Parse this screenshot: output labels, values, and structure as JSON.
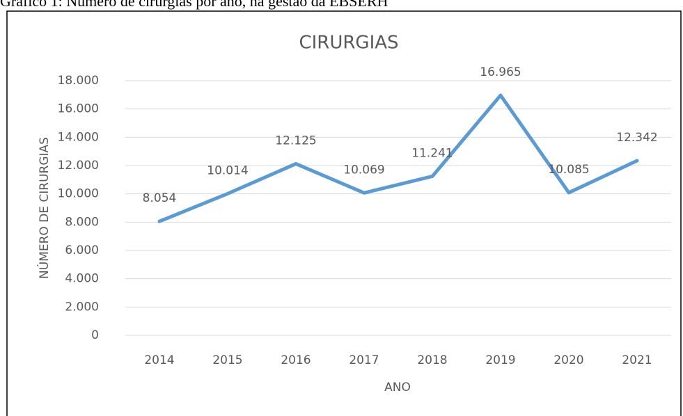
{
  "caption": "Gráfico 1: Número de cirurgias por ano, na gestão da EBSERH",
  "chart_data": {
    "type": "line",
    "title": "CIRURGIAS",
    "x_label": "ANO",
    "y_label": "NÚMERO DE CIRURGIAS",
    "categories": [
      "2014",
      "2015",
      "2016",
      "2017",
      "2018",
      "2019",
      "2020",
      "2021"
    ],
    "series": [
      {
        "name": "CIRURGIAS",
        "color": "#5b9bd5",
        "values": [
          8054,
          10014,
          12125,
          10069,
          11241,
          16965,
          10085,
          12342
        ],
        "value_labels": [
          "8.054",
          "10.014",
          "12.125",
          "10.069",
          "11.241",
          "16.965",
          "10.085",
          "12.342"
        ]
      }
    ],
    "ylim": [
      0,
      18000
    ],
    "yticks": [
      0,
      {
        "value": 2000,
        "label": "2.000"
      },
      {
        "value": 4000,
        "label": "4.000"
      },
      {
        "value": 6000,
        "label": "6.000"
      },
      {
        "value": 8000,
        "label": "8.000"
      },
      {
        "value": 10000,
        "label": "10.000"
      },
      {
        "value": 12000,
        "label": "12.000"
      },
      {
        "value": 14000,
        "label": "14.000"
      },
      {
        "value": 16000,
        "label": "16.000"
      },
      {
        "value": 18000,
        "label": "18.000"
      }
    ],
    "grid": true
  }
}
